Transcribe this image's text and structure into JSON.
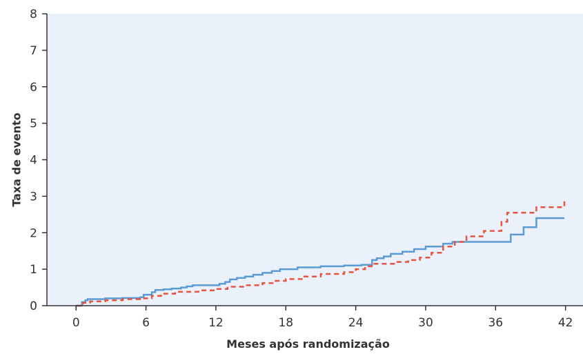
{
  "chart_data": {
    "type": "line",
    "title": "",
    "xlabel": "Meses após randomização",
    "ylabel": "Taxa de evento",
    "xlim": [
      -2.5,
      43.5
    ],
    "ylim": [
      0,
      8
    ],
    "xticks": [
      0,
      6,
      12,
      18,
      24,
      30,
      36,
      42
    ],
    "yticks": [
      0,
      1,
      2,
      3,
      4,
      5,
      6,
      7,
      8
    ],
    "grid": false,
    "legend": "none",
    "plot_background": "#eaf1fa",
    "series": [
      {
        "color": "#5b9bd5",
        "style": "solid-step",
        "x": [
          0,
          0.5,
          0.8,
          1,
          2.5,
          4,
          5.5,
          5.8,
          6.5,
          6.8,
          7.5,
          8.2,
          9,
          9.5,
          10,
          10.8,
          11.5,
          12.3,
          12.8,
          13.2,
          13.8,
          14.5,
          15.2,
          16,
          16.8,
          17.5,
          19,
          21,
          23,
          24.5,
          25.4,
          25.8,
          26.4,
          27,
          28,
          29,
          30,
          31.5,
          32.3,
          33.5,
          35,
          36.5,
          37.3,
          38.4,
          39.5,
          41.9
        ],
        "y": [
          0,
          0.1,
          0.15,
          0.18,
          0.2,
          0.21,
          0.23,
          0.3,
          0.37,
          0.43,
          0.45,
          0.47,
          0.5,
          0.53,
          0.56,
          0.56,
          0.56,
          0.6,
          0.65,
          0.72,
          0.76,
          0.8,
          0.85,
          0.9,
          0.95,
          1.0,
          1.05,
          1.08,
          1.1,
          1.12,
          1.25,
          1.3,
          1.35,
          1.42,
          1.48,
          1.55,
          1.62,
          1.7,
          1.75,
          1.75,
          1.75,
          1.75,
          1.95,
          2.15,
          2.4,
          2.4
        ]
      },
      {
        "color": "#e8533e",
        "style": "dashed-step",
        "x": [
          0,
          0.6,
          1.2,
          2.5,
          4,
          5.5,
          6.5,
          7.3,
          8.5,
          10.5,
          12,
          13,
          14.5,
          16,
          17,
          18,
          19.5,
          21,
          23,
          24,
          24.8,
          25.5,
          27.5,
          28.5,
          29.5,
          30.5,
          31.5,
          32.5,
          33.5,
          35,
          36.5,
          37,
          39.5,
          41.9
        ],
        "y": [
          0,
          0.08,
          0.12,
          0.15,
          0.18,
          0.2,
          0.27,
          0.33,
          0.38,
          0.42,
          0.46,
          0.52,
          0.56,
          0.62,
          0.68,
          0.73,
          0.8,
          0.87,
          0.92,
          1.0,
          1.08,
          1.15,
          1.2,
          1.25,
          1.32,
          1.45,
          1.62,
          1.75,
          1.9,
          2.05,
          2.3,
          2.55,
          2.7,
          2.92
        ]
      }
    ]
  }
}
